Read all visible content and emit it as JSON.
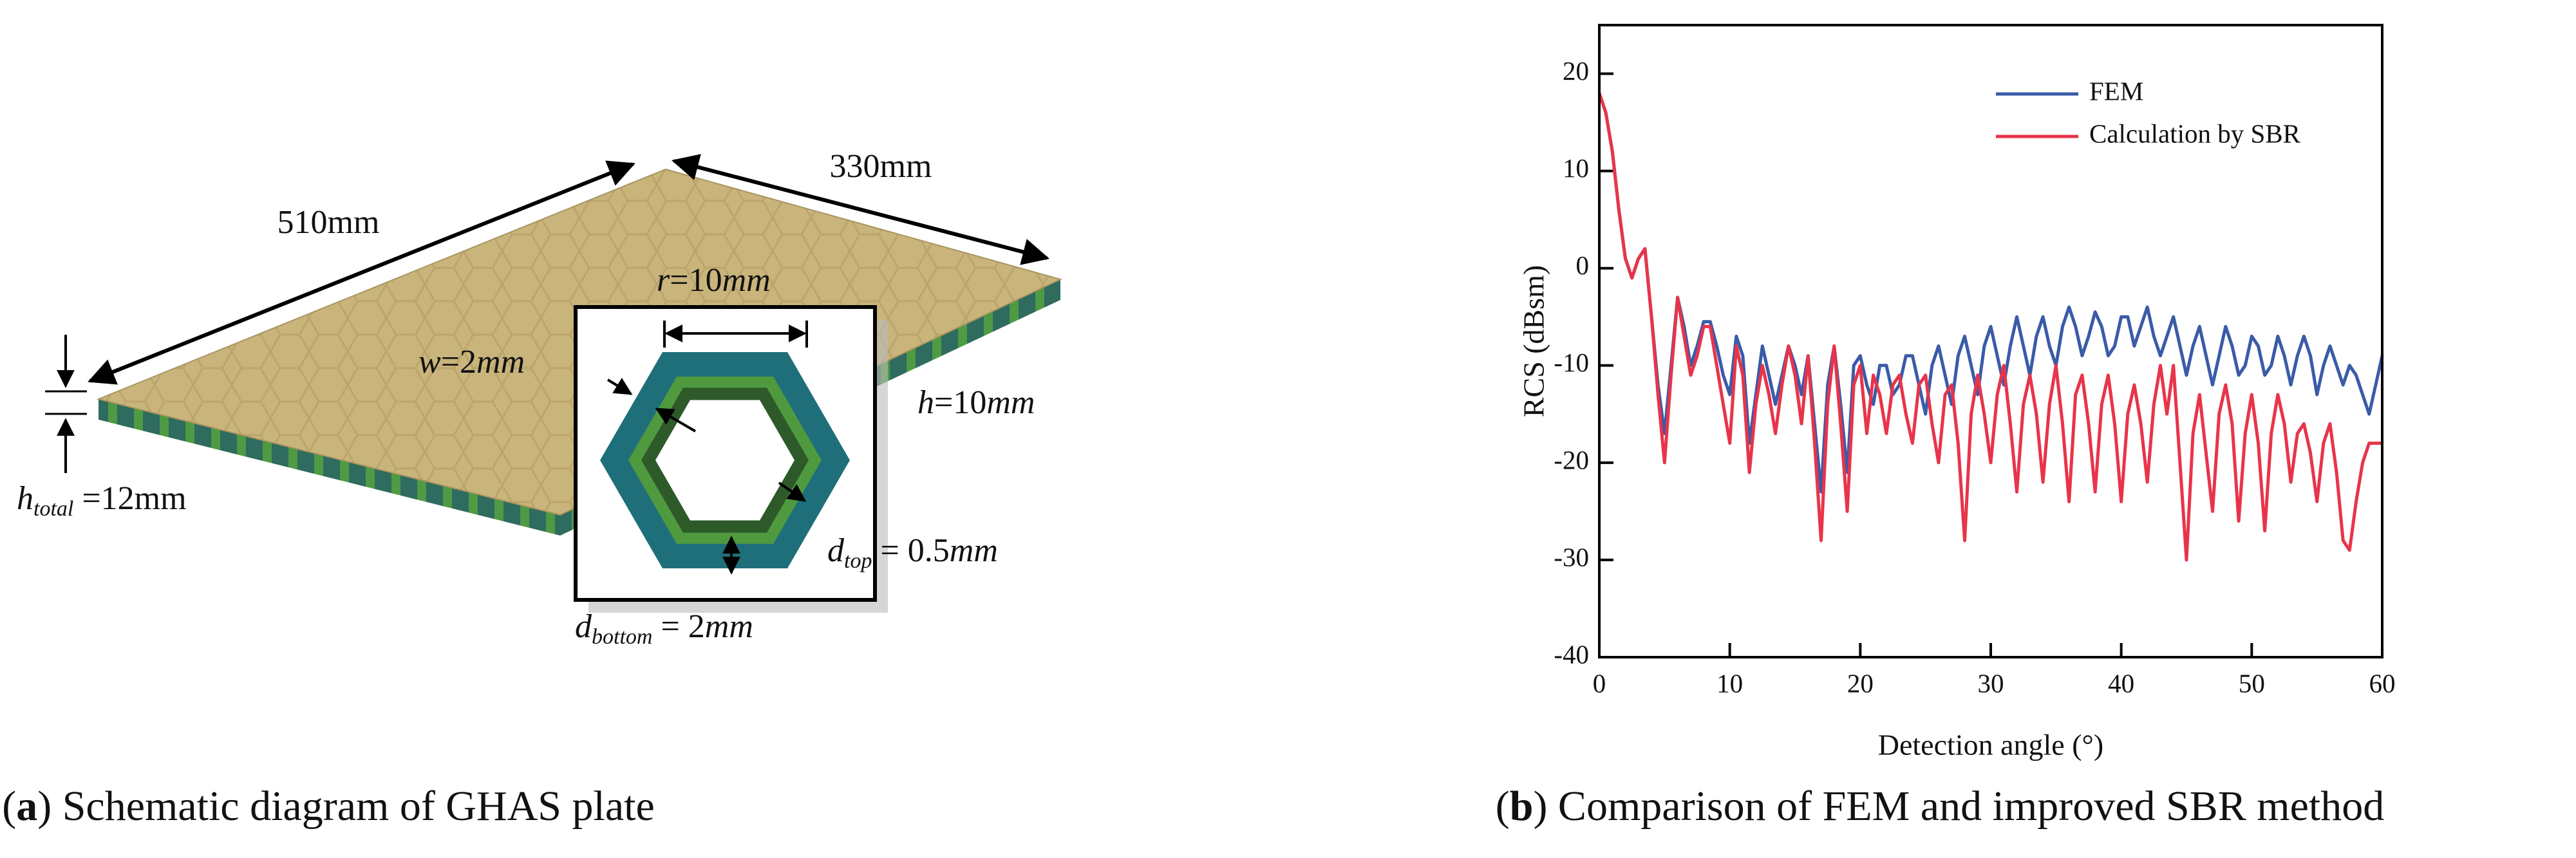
{
  "figure_a": {
    "caption": {
      "open": "(",
      "label": "a",
      "text": ") Schematic diagram of GHAS plate"
    },
    "length_label": "510mm",
    "width_label": "330mm",
    "h_total": {
      "var": "h",
      "sub": "total",
      "rest": " =12mm"
    },
    "w": {
      "var": "w",
      "rest": "=2",
      "unit": "mm"
    },
    "h": {
      "var": "h",
      "rest": "=10",
      "unit": "mm"
    },
    "r": {
      "var": "r",
      "rest": "=10",
      "unit": "mm"
    },
    "d_top": {
      "var": "d",
      "sub": "top",
      "rest": " = 0.5",
      "unit": "mm"
    },
    "d_bottom": {
      "var": "d",
      "sub": "bottom",
      "rest": " = 2",
      "unit": "mm"
    }
  },
  "chart_data": {
    "type": "line",
    "caption": {
      "open": "(",
      "label": "b",
      "text": ") Comparison of FEM and improved SBR method"
    },
    "xlabel": "Detection angle (°)",
    "ylabel": "RCS (dBsm)",
    "xlim": [
      0,
      60
    ],
    "ylim": [
      -40,
      25
    ],
    "xticks": [
      0,
      10,
      20,
      30,
      40,
      50,
      60
    ],
    "yticks": [
      -40,
      -30,
      -20,
      -10,
      0,
      10,
      20
    ],
    "legend": "upper right",
    "x": [
      0,
      0.5,
      1,
      1.5,
      2,
      2.5,
      3,
      3.5,
      4,
      4.5,
      5,
      5.5,
      6,
      6.5,
      7,
      7.5,
      8,
      8.5,
      9,
      9.5,
      10,
      10.5,
      11,
      11.5,
      12,
      12.5,
      13,
      13.5,
      14,
      14.5,
      15,
      15.5,
      16,
      16.5,
      17,
      17.5,
      18,
      18.5,
      19,
      19.5,
      20,
      20.5,
      21,
      21.5,
      22,
      22.5,
      23,
      23.5,
      24,
      24.5,
      25,
      25.5,
      26,
      26.5,
      27,
      27.5,
      28,
      28.5,
      29,
      29.5,
      30,
      30.5,
      31,
      31.5,
      32,
      32.5,
      33,
      33.5,
      34,
      34.5,
      35,
      35.5,
      36,
      36.5,
      37,
      37.5,
      38,
      38.5,
      39,
      39.5,
      40,
      40.5,
      41,
      41.5,
      42,
      42.5,
      43,
      43.5,
      44,
      44.5,
      45,
      45.5,
      46,
      46.5,
      47,
      47.5,
      48,
      48.5,
      49,
      49.5,
      50,
      50.5,
      51,
      51.5,
      52,
      52.5,
      53,
      53.5,
      54,
      54.5,
      55,
      55.5,
      56,
      56.5,
      57,
      57.5,
      58,
      58.5,
      59,
      59.5,
      60
    ],
    "series": [
      {
        "name": "FEM",
        "color": "#3a5ba8",
        "values": [
          18,
          16,
          12,
          6,
          1,
          -1,
          1,
          2,
          -5,
          -12,
          -17,
          -10,
          -3,
          -6,
          -10,
          -8,
          -5.5,
          -5.5,
          -8,
          -11,
          -13,
          -7,
          -9,
          -18,
          -13,
          -8,
          -11,
          -14,
          -11,
          -8,
          -10,
          -13,
          -9,
          -16,
          -23,
          -12,
          -8,
          -14,
          -21,
          -10,
          -9,
          -12,
          -14,
          -10,
          -10,
          -13,
          -12,
          -9,
          -9,
          -12,
          -15,
          -10,
          -8,
          -11,
          -14,
          -9,
          -7,
          -10,
          -13,
          -8,
          -6,
          -9,
          -12,
          -8,
          -5,
          -8,
          -11,
          -7,
          -5,
          -8,
          -10,
          -6,
          -4,
          -6,
          -9,
          -7,
          -4.5,
          -6,
          -9,
          -8,
          -5,
          -5,
          -8,
          -6,
          -4,
          -7,
          -9,
          -7,
          -5,
          -8,
          -11,
          -8,
          -6,
          -9,
          -12,
          -9,
          -6,
          -8,
          -11,
          -10,
          -7,
          -8,
          -11,
          -10,
          -7,
          -9,
          -12,
          -9,
          -7,
          -9,
          -13,
          -10,
          -8,
          -10,
          -12,
          -10,
          -11,
          -13,
          -15,
          -12,
          -9
        ]
      },
      {
        "name": "Calculation by SBR",
        "color": "#e8344a",
        "values": [
          18,
          16,
          12,
          6,
          1,
          -1,
          1,
          2,
          -5,
          -13,
          -20,
          -11,
          -3,
          -7,
          -11,
          -9,
          -6,
          -6,
          -10,
          -14,
          -18,
          -8,
          -11,
          -21,
          -14,
          -10,
          -13,
          -17,
          -12,
          -8,
          -11,
          -16,
          -9,
          -18,
          -28,
          -14,
          -8,
          -16,
          -25,
          -12,
          -10,
          -17,
          -11,
          -13,
          -17,
          -12,
          -11,
          -15,
          -18,
          -12,
          -11,
          -16,
          -20,
          -13,
          -12,
          -18,
          -28,
          -15,
          -11,
          -15,
          -20,
          -13,
          -10,
          -16,
          -23,
          -14,
          -11,
          -15,
          -22,
          -14,
          -10,
          -16,
          -24,
          -13,
          -11,
          -16,
          -23,
          -14,
          -11,
          -16,
          -24,
          -15,
          -12,
          -16,
          -22,
          -14,
          -10,
          -15,
          -10,
          -20,
          -30,
          -17,
          -13,
          -19,
          -25,
          -15,
          -12,
          -16,
          -26,
          -17,
          -13,
          -18,
          -27,
          -17,
          -13,
          -16,
          -22,
          -17,
          -16,
          -19,
          -24,
          -18,
          -16,
          -21,
          -28,
          -29,
          -24,
          -20,
          -18,
          -18,
          -18
        ]
      }
    ]
  }
}
